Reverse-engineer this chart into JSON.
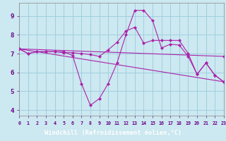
{
  "background_color": "#cce8f0",
  "grid_color": "#99ccdd",
  "line_color": "#aa22aa",
  "xlabel": "Windchill (Refroidissement éolien,°C)",
  "xlabel_bg": "#7700bb",
  "ylim": [
    3.7,
    9.7
  ],
  "xlim": [
    0,
    23
  ],
  "yticks": [
    4,
    5,
    6,
    7,
    8,
    9
  ],
  "xticks": [
    0,
    1,
    2,
    3,
    4,
    5,
    6,
    7,
    8,
    9,
    10,
    11,
    12,
    13,
    14,
    15,
    16,
    17,
    18,
    19,
    20,
    21,
    22,
    23
  ],
  "lines": [
    {
      "x": [
        0,
        1,
        2,
        3,
        4,
        5,
        6,
        7,
        8,
        9,
        10,
        11,
        12,
        13,
        14,
        15,
        16,
        17,
        18,
        19,
        20,
        21,
        22,
        23
      ],
      "y": [
        7.25,
        7.0,
        7.1,
        7.1,
        7.1,
        7.1,
        6.9,
        5.4,
        4.25,
        4.6,
        5.4,
        6.5,
        8.0,
        9.3,
        9.3,
        8.75,
        7.3,
        7.5,
        7.45,
        6.85,
        5.9,
        6.5,
        5.85,
        5.5
      ]
    },
    {
      "x": [
        0,
        1,
        2,
        3,
        4,
        5,
        6,
        7,
        8,
        9,
        10,
        11,
        12,
        13,
        14,
        15,
        16,
        17,
        18,
        19,
        20,
        21,
        22,
        23
      ],
      "y": [
        7.25,
        7.0,
        7.1,
        7.1,
        7.1,
        7.05,
        7.05,
        7.0,
        6.95,
        6.85,
        7.2,
        7.6,
        8.2,
        8.4,
        7.55,
        7.7,
        7.7,
        7.7,
        7.7,
        7.0,
        5.9,
        6.5,
        5.85,
        5.5
      ]
    },
    {
      "x": [
        0,
        23
      ],
      "y": [
        7.25,
        6.85
      ]
    },
    {
      "x": [
        0,
        23
      ],
      "y": [
        7.25,
        5.5
      ]
    }
  ]
}
